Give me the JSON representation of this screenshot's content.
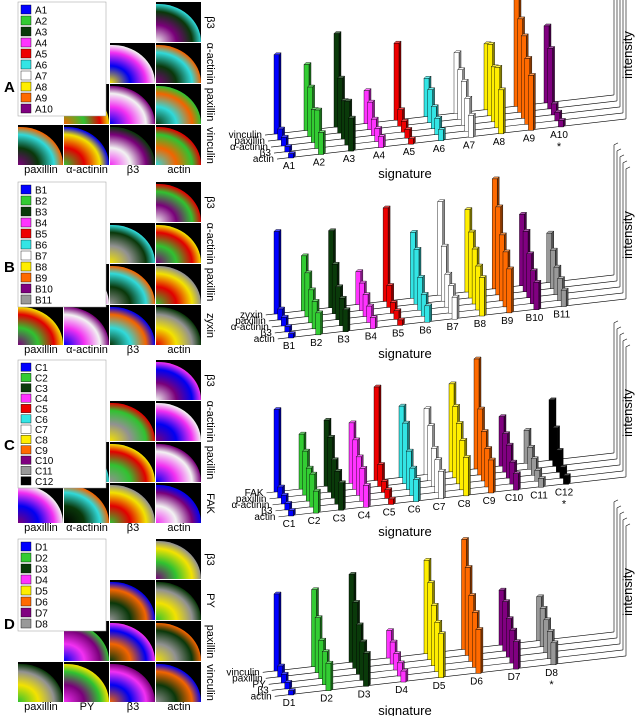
{
  "chart_data": [
    {
      "type": "bar3d",
      "panel": "A",
      "matrix_xlabels": [
        "paxillin",
        "α-actinin",
        "β3",
        "actin"
      ],
      "matrix_ylabels": [
        "β3",
        "α-actinin",
        "paxillin",
        "vinculin"
      ],
      "categories": [
        "vinculin",
        "paxillin",
        "α-actinin",
        "β3",
        "actin"
      ],
      "xlabel": "signature",
      "zlabel": "intensity",
      "zlim": [
        0,
        1
      ],
      "annotations": [
        {
          "text": "*",
          "series": "A10"
        }
      ],
      "series": [
        {
          "name": "A1",
          "color": "#0000ff",
          "values": [
            0.72,
            0.1,
            0.08,
            0.05,
            0.04
          ]
        },
        {
          "name": "A2",
          "color": "#33cc33",
          "values": [
            0.6,
            0.45,
            0.3,
            0.35,
            0.2
          ]
        },
        {
          "name": "A3",
          "color": "#0a3a0a",
          "values": [
            0.85,
            0.5,
            0.35,
            0.4,
            0.3
          ]
        },
        {
          "name": "A4",
          "color": "#ff33ff",
          "values": [
            0.3,
            0.25,
            0.15,
            0.12,
            0.1
          ]
        },
        {
          "name": "A5",
          "color": "#ee0000",
          "values": [
            0.7,
            0.15,
            0.1,
            0.08,
            0.05
          ]
        },
        {
          "name": "A6",
          "color": "#33e5e5",
          "values": [
            0.35,
            0.3,
            0.2,
            0.15,
            0.1
          ]
        },
        {
          "name": "A7",
          "color": "#ffffff",
          "values": [
            0.55,
            0.45,
            0.4,
            0.3,
            0.2
          ]
        },
        {
          "name": "A8",
          "color": "#ffee00",
          "values": [
            0.6,
            0.65,
            0.5,
            0.55,
            0.4
          ]
        },
        {
          "name": "A9",
          "color": "#ff6a00",
          "values": [
            1.0,
            0.85,
            0.75,
            0.6,
            0.5
          ]
        },
        {
          "name": "A10",
          "color": "#800080",
          "values": [
            0.7,
            0.55,
            0.1,
            0.08,
            0.06
          ]
        }
      ]
    },
    {
      "type": "bar3d",
      "panel": "B",
      "matrix_xlabels": [
        "paxillin",
        "α-actinin",
        "β3",
        "actin"
      ],
      "matrix_ylabels": [
        "β3",
        "α-actinin",
        "paxillin",
        "zyxin"
      ],
      "categories": [
        "zyxin",
        "paxillin",
        "α-actinin",
        "β3",
        "actin"
      ],
      "xlabel": "signature",
      "zlabel": "intensity",
      "zlim": [
        0,
        1
      ],
      "annotations": [],
      "series": [
        {
          "name": "B1",
          "color": "#0000ff",
          "values": [
            0.75,
            0.1,
            0.08,
            0.05,
            0.04
          ]
        },
        {
          "name": "B2",
          "color": "#33cc33",
          "values": [
            0.5,
            0.4,
            0.3,
            0.25,
            0.2
          ]
        },
        {
          "name": "B3",
          "color": "#0a3a0a",
          "values": [
            0.7,
            0.45,
            0.3,
            0.25,
            0.2
          ]
        },
        {
          "name": "B4",
          "color": "#ff33ff",
          "values": [
            0.3,
            0.25,
            0.2,
            0.15,
            0.1
          ]
        },
        {
          "name": "B5",
          "color": "#ee0000",
          "values": [
            0.85,
            0.2,
            0.1,
            0.08,
            0.05
          ]
        },
        {
          "name": "B6",
          "color": "#33e5e5",
          "values": [
            0.6,
            0.5,
            0.3,
            0.2,
            0.15
          ]
        },
        {
          "name": "B7",
          "color": "#ffffff",
          "values": [
            0.85,
            0.5,
            0.3,
            0.25,
            0.2
          ]
        },
        {
          "name": "B8",
          "color": "#ffee00",
          "values": [
            0.75,
            0.6,
            0.5,
            0.4,
            0.35
          ]
        },
        {
          "name": "B9",
          "color": "#ff6a00",
          "values": [
            1.0,
            0.8,
            0.6,
            0.5,
            0.4
          ]
        },
        {
          "name": "B10",
          "color": "#800080",
          "values": [
            0.65,
            0.55,
            0.4,
            0.3,
            0.25
          ]
        },
        {
          "name": "B11",
          "color": "#999999",
          "values": [
            0.45,
            0.35,
            0.25,
            0.2,
            0.15
          ]
        }
      ]
    },
    {
      "type": "bar3d",
      "panel": "C",
      "matrix_xlabels": [
        "paxillin",
        "α-actinin",
        "β3",
        "actin"
      ],
      "matrix_ylabels": [
        "β3",
        "α-actinin",
        "paxillin",
        "FAK"
      ],
      "categories": [
        "FAK",
        "paxillin",
        "α-actinin",
        "β3",
        "actin"
      ],
      "xlabel": "signature",
      "zlabel": "intensity",
      "zlim": [
        0,
        1
      ],
      "annotations": [
        {
          "text": "*",
          "series": "C12"
        }
      ],
      "series": [
        {
          "name": "C1",
          "color": "#0000ff",
          "values": [
            0.75,
            0.1,
            0.08,
            0.06,
            0.05
          ]
        },
        {
          "name": "C2",
          "color": "#33cc33",
          "values": [
            0.5,
            0.4,
            0.3,
            0.3,
            0.2
          ]
        },
        {
          "name": "C3",
          "color": "#0a3a0a",
          "values": [
            0.6,
            0.5,
            0.35,
            0.3,
            0.25
          ]
        },
        {
          "name": "C4",
          "color": "#ff33ff",
          "values": [
            0.55,
            0.45,
            0.35,
            0.3,
            0.2
          ]
        },
        {
          "name": "C5",
          "color": "#ee0000",
          "values": [
            0.85,
            0.2,
            0.1,
            0.08,
            0.05
          ]
        },
        {
          "name": "C6",
          "color": "#33e5e5",
          "values": [
            0.65,
            0.55,
            0.35,
            0.25,
            0.2
          ]
        },
        {
          "name": "C7",
          "color": "#ffffff",
          "values": [
            0.6,
            0.5,
            0.35,
            0.3,
            0.25
          ]
        },
        {
          "name": "C8",
          "color": "#ffee00",
          "values": [
            0.8,
            0.65,
            0.55,
            0.45,
            0.35
          ]
        },
        {
          "name": "C9",
          "color": "#ff6a00",
          "values": [
            1.0,
            0.6,
            0.45,
            0.35,
            0.3
          ]
        },
        {
          "name": "C10",
          "color": "#800080",
          "values": [
            0.45,
            0.35,
            0.3,
            0.2,
            0.15
          ]
        },
        {
          "name": "C11",
          "color": "#999999",
          "values": [
            0.3,
            0.2,
            0.15,
            0.1,
            0.08
          ]
        },
        {
          "name": "C12",
          "color": "#000000",
          "values": [
            0.55,
            0.35,
            0.2,
            0.1,
            0.08
          ]
        }
      ]
    },
    {
      "type": "bar3d",
      "panel": "D",
      "matrix_xlabels": [
        "paxillin",
        "PY",
        "β3",
        "actin"
      ],
      "matrix_ylabels": [
        "β3",
        "PY",
        "paxillin",
        "vinculin"
      ],
      "categories": [
        "vinculin",
        "paxillin",
        "PY",
        "β3",
        "actin"
      ],
      "xlabel": "signature",
      "zlabel": "intensity",
      "zlim": [
        0,
        1
      ],
      "annotations": [
        {
          "text": "*",
          "series": "D8"
        }
      ],
      "series": [
        {
          "name": "D1",
          "color": "#0000ff",
          "values": [
            0.7,
            0.1,
            0.08,
            0.06,
            0.04
          ]
        },
        {
          "name": "D2",
          "color": "#33cc33",
          "values": [
            0.7,
            0.5,
            0.35,
            0.3,
            0.25
          ]
        },
        {
          "name": "D3",
          "color": "#0a3a0a",
          "values": [
            0.8,
            0.6,
            0.45,
            0.35,
            0.3
          ]
        },
        {
          "name": "D4",
          "color": "#ff33ff",
          "values": [
            0.25,
            0.2,
            0.15,
            0.12,
            0.1
          ]
        },
        {
          "name": "D5",
          "color": "#ffee00",
          "values": [
            0.85,
            0.7,
            0.55,
            0.45,
            0.4
          ]
        },
        {
          "name": "D6",
          "color": "#ff6a00",
          "values": [
            1.0,
            0.8,
            0.6,
            0.5,
            0.4
          ]
        },
        {
          "name": "D7",
          "color": "#800080",
          "values": [
            0.5,
            0.45,
            0.35,
            0.3,
            0.25
          ]
        },
        {
          "name": "D8",
          "color": "#999999",
          "values": [
            0.4,
            0.35,
            0.3,
            0.25,
            0.2
          ]
        }
      ]
    }
  ]
}
